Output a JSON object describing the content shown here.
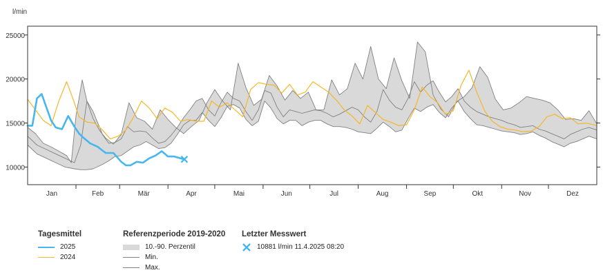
{
  "chart_data": {
    "type": "line",
    "unit_label": "l/min",
    "ylim": [
      8000,
      26000
    ],
    "y_ticks": [
      10000,
      15000,
      20000,
      25000
    ],
    "y_tick_labels": [
      "10000",
      "15000",
      "20000",
      "25000"
    ],
    "months": [
      "Jan",
      "Feb",
      "Mär",
      "Apr",
      "Mai",
      "Jun",
      "Jul",
      "Aug",
      "Sep",
      "Okt",
      "Nov",
      "Dez"
    ],
    "x_unit": "day of year",
    "xlim": [
      0,
      365
    ],
    "grid": false,
    "series": [
      {
        "name": "2025",
        "color": "#45b6ee",
        "width": 2.6,
        "x": [
          0,
          3,
          6,
          9,
          12,
          15,
          18,
          22,
          26,
          30,
          33,
          36,
          40,
          45,
          50,
          55,
          60,
          63,
          66,
          70,
          74,
          78,
          82,
          86,
          90,
          94,
          98,
          100
        ],
        "y": [
          14700,
          14700,
          17800,
          18300,
          16800,
          15300,
          14500,
          14300,
          15800,
          14600,
          13800,
          13300,
          12700,
          12300,
          11600,
          11600,
          10600,
          10200,
          10200,
          10600,
          10500,
          11000,
          11300,
          11800,
          11200,
          11200,
          11000,
          10900
        ]
      },
      {
        "name": "2024",
        "color": "#f5b727",
        "width": 1.2,
        "x": [
          0,
          5,
          10,
          15,
          20,
          25,
          29,
          33,
          38,
          43,
          48,
          53,
          58,
          63,
          68,
          73,
          78,
          83,
          88,
          93,
          98,
          103,
          108,
          113,
          118,
          123,
          128,
          133,
          138,
          143,
          148,
          153,
          158,
          163,
          168,
          173,
          178,
          183,
          188,
          193,
          198,
          203,
          208,
          213,
          218,
          223,
          228,
          233,
          238,
          243,
          248,
          253,
          258,
          263,
          268,
          273,
          278,
          283,
          288,
          293,
          298,
          303,
          308,
          313,
          318,
          323,
          328,
          333,
          338,
          343,
          348,
          353,
          358,
          363,
          365
        ],
        "y": [
          17700,
          16500,
          15300,
          14700,
          17500,
          19700,
          17800,
          15700,
          15100,
          15000,
          14200,
          13200,
          13500,
          14200,
          15700,
          17500,
          16700,
          15500,
          16700,
          16200,
          15200,
          15400,
          15200,
          15200,
          17500,
          16800,
          17300,
          16500,
          15700,
          18800,
          19600,
          19400,
          19300,
          18400,
          19400,
          18200,
          18500,
          19700,
          19100,
          18500,
          17600,
          16500,
          15800,
          14900,
          17000,
          16200,
          15400,
          15100,
          14700,
          14800,
          16500,
          19100,
          18000,
          17300,
          16000,
          16400,
          19300,
          21000,
          18500,
          16400,
          15200,
          14600,
          14300,
          14200,
          14000,
          14100,
          14600,
          15700,
          16000,
          15500,
          15600,
          14900,
          15000,
          14800,
          14700
        ]
      },
      {
        "name": "",
        "color": "#808080",
        "width": 0.9,
        "x": [
          0,
          6,
          12,
          18,
          24,
          30,
          34,
          38,
          42,
          48,
          52,
          56,
          60,
          64,
          68,
          72,
          76,
          80,
          84,
          88,
          92,
          96,
          100,
          104,
          108,
          112,
          116,
          120,
          124,
          128,
          132,
          136,
          140,
          144,
          148,
          152,
          156,
          160,
          164,
          168,
          172,
          176,
          180,
          184,
          188,
          192,
          196,
          200,
          204,
          208,
          212,
          216,
          220,
          224,
          228,
          232,
          236,
          240,
          244,
          248,
          252,
          256,
          260,
          264,
          268,
          272,
          276,
          280,
          284,
          288,
          292,
          296,
          300,
          304,
          308,
          312,
          316,
          320,
          324,
          328,
          332,
          336,
          340,
          344,
          348,
          352,
          356,
          360,
          365
        ],
        "y": [
          12500,
          11500,
          11000,
          10500,
          10000,
          9800,
          9700,
          9700,
          9800,
          10300,
          10700,
          11200,
          11300,
          11800,
          12300,
          12500,
          12900,
          12500,
          12100,
          12200,
          12700,
          13700,
          14800,
          15300,
          15300,
          16200,
          15300,
          14600,
          15600,
          16900,
          17100,
          16700,
          15400,
          14700,
          15200,
          17500,
          16700,
          15500,
          14900,
          15300,
          15300,
          14700,
          15100,
          15300,
          15300,
          14900,
          14600,
          14600,
          14500,
          14300,
          14000,
          13900,
          13800,
          14400,
          15100,
          14600,
          14000,
          14200,
          15500,
          16700,
          16300,
          16800,
          17100,
          16200,
          15600,
          16700,
          17500,
          16300,
          15500,
          14800,
          14700,
          14500,
          14300,
          14100,
          14000,
          13900,
          13700,
          13800,
          14000,
          13600,
          13300,
          12900,
          12600,
          12300,
          12700,
          12900,
          13200,
          13500,
          13200
        ]
      },
      {
        "name": "",
        "color": "#808080",
        "width": 0.9,
        "x": [
          0,
          5,
          10,
          15,
          20,
          25,
          28,
          31,
          35,
          38,
          42,
          46,
          50,
          55,
          60,
          65,
          70,
          75,
          80,
          85,
          90,
          95,
          100,
          105,
          110,
          115,
          120,
          125,
          130,
          135,
          140,
          145,
          150,
          155,
          160,
          165,
          170,
          175,
          180,
          185,
          190,
          195,
          200,
          205,
          210,
          215,
          220,
          225,
          230,
          235,
          240,
          245,
          250,
          255,
          260,
          265,
          270,
          275,
          280,
          285,
          290,
          295,
          300,
          305,
          310,
          315,
          320,
          325,
          330,
          335,
          340,
          345,
          350,
          355,
          360,
          365
        ],
        "y": [
          14500,
          13800,
          12700,
          12300,
          11800,
          11300,
          10500,
          15800,
          19900,
          17500,
          15500,
          14200,
          13300,
          12600,
          13700,
          17300,
          15600,
          15200,
          14300,
          16500,
          15400,
          14500,
          13800,
          14600,
          15300,
          17300,
          18800,
          17500,
          16500,
          21800,
          19000,
          17000,
          17700,
          20400,
          19200,
          17600,
          18700,
          17800,
          18500,
          16500,
          16500,
          19900,
          18200,
          18900,
          21800,
          20000,
          23700,
          20000,
          18900,
          22400,
          19800,
          17800,
          24200,
          23100,
          18200,
          16600,
          15700,
          17400,
          18000,
          19000,
          21400,
          20200,
          17700,
          16500,
          16700,
          17300,
          18000,
          17800,
          17600,
          17300,
          16500,
          15400,
          15500,
          15300,
          16400,
          14900
        ]
      },
      {
        "name": "",
        "color": "#808080",
        "width": 0.9,
        "x": [
          0,
          6,
          12,
          18,
          24,
          30,
          34,
          38,
          42,
          48,
          52,
          56,
          60,
          64,
          68,
          72,
          76,
          80,
          84,
          88,
          92,
          96,
          100,
          104,
          108,
          112,
          116,
          120,
          124,
          128,
          132,
          136,
          140,
          144,
          148,
          152,
          156,
          160,
          164,
          168,
          172,
          176,
          180,
          184,
          188,
          192,
          196,
          200,
          204,
          208,
          212,
          216,
          220,
          224,
          228,
          232,
          236,
          240,
          244,
          248,
          252,
          256,
          260,
          264,
          268,
          272,
          276,
          280,
          284,
          288,
          292,
          296,
          300,
          304,
          308,
          312,
          316,
          320,
          324,
          328,
          332,
          336,
          340,
          344,
          348,
          352,
          356,
          360,
          365
        ],
        "y": [
          13500,
          12500,
          12000,
          11500,
          11000,
          10500,
          12500,
          17500,
          16300,
          13700,
          12700,
          12800,
          13200,
          14600,
          14000,
          14100,
          14000,
          13300,
          12700,
          12900,
          13600,
          14500,
          15600,
          16500,
          17500,
          17800,
          16500,
          15800,
          17300,
          18500,
          17800,
          17500,
          16300,
          15300,
          16500,
          18700,
          18400,
          16800,
          15700,
          16500,
          16300,
          16100,
          16300,
          16500,
          16400,
          16100,
          15700,
          16000,
          16400,
          16800,
          16500,
          15700,
          15100,
          16300,
          18800,
          17600,
          16800,
          16500,
          17800,
          19700,
          18500,
          19300,
          19800,
          18500,
          17400,
          18000,
          18900,
          17500,
          16800,
          16300,
          16000,
          15700,
          15500,
          15300,
          15000,
          14800,
          14500,
          14600,
          14700,
          14300,
          14100,
          13800,
          13500,
          13200,
          13700,
          14000,
          14300,
          14500,
          14200
        ]
      }
    ],
    "band_label": "10.-90. Perzentil",
    "last_value": {
      "x": 100.5,
      "y": 10881,
      "color": "#45b6ee"
    }
  },
  "legend": {
    "tagesmittel": {
      "title": "Tagesmittel",
      "items": [
        {
          "label": "2025",
          "color": "#45b6ee"
        },
        {
          "label": "2024",
          "color": "#f5b727"
        }
      ]
    },
    "referenz": {
      "title": "Referenzperiode 2019-2020",
      "band": "10.-90. Perzentil",
      "min": "Min.",
      "max": "Max.",
      "band_color": "#d9d9d9",
      "line_color": "#808080"
    },
    "letzter": {
      "title": "Letzter Messwert",
      "text": "10881 l/min 11.4.2025 08:20",
      "color": "#45b6ee"
    }
  }
}
